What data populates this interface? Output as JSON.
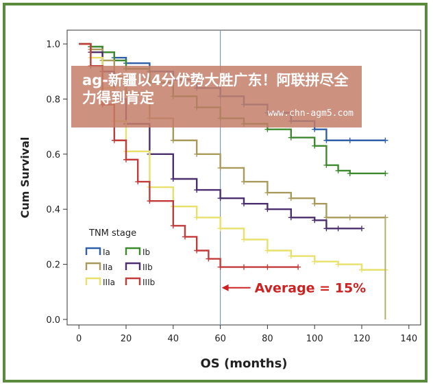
{
  "chart_data": {
    "type": "line",
    "xlabel": "OS (months)",
    "ylabel": "Cum Survival",
    "xlim": [
      -5,
      145
    ],
    "ylim": [
      -0.02,
      1.05
    ],
    "x_ticks": [
      0,
      20,
      40,
      60,
      80,
      100,
      120,
      140
    ],
    "y_ticks": [
      0.0,
      0.2,
      0.4,
      0.6,
      0.8,
      1.0
    ],
    "x_tick_labels": [
      "0",
      "20",
      "40",
      "60",
      "80",
      "100",
      "120",
      "140"
    ],
    "y_tick_labels": [
      "0.0",
      "0.2",
      "0.4",
      "0.6",
      "0.8",
      "1.0"
    ],
    "grid": false,
    "legend_title": "TNM stage",
    "legend_position": "bottom-left",
    "reference_line_x": 60,
    "annotation": {
      "text": "Average = 15%",
      "color": "#cc2222",
      "arrow_to_x": 60,
      "y": 0.115
    },
    "series": [
      {
        "name": "Ia",
        "color": "#2f5fa8",
        "points": [
          [
            0,
            1.0
          ],
          [
            5,
            0.99
          ],
          [
            10,
            0.97
          ],
          [
            15,
            0.95
          ],
          [
            20,
            0.93
          ],
          [
            30,
            0.9
          ],
          [
            40,
            0.87
          ],
          [
            50,
            0.84
          ],
          [
            60,
            0.81
          ],
          [
            70,
            0.78
          ],
          [
            80,
            0.75
          ],
          [
            90,
            0.72
          ],
          [
            100,
            0.69
          ],
          [
            105,
            0.65
          ],
          [
            115,
            0.65
          ],
          [
            130,
            0.65
          ]
        ]
      },
      {
        "name": "Ib",
        "color": "#3d8a2e",
        "points": [
          [
            0,
            1.0
          ],
          [
            5,
            0.99
          ],
          [
            10,
            0.97
          ],
          [
            15,
            0.94
          ],
          [
            20,
            0.91
          ],
          [
            30,
            0.86
          ],
          [
            40,
            0.81
          ],
          [
            50,
            0.77
          ],
          [
            60,
            0.73
          ],
          [
            70,
            0.71
          ],
          [
            80,
            0.69
          ],
          [
            90,
            0.66
          ],
          [
            100,
            0.63
          ],
          [
            105,
            0.56
          ],
          [
            110,
            0.54
          ],
          [
            115,
            0.53
          ],
          [
            130,
            0.53
          ]
        ]
      },
      {
        "name": "IIa",
        "color": "#a89a5a",
        "points": [
          [
            0,
            1.0
          ],
          [
            5,
            0.98
          ],
          [
            10,
            0.94
          ],
          [
            15,
            0.88
          ],
          [
            20,
            0.82
          ],
          [
            30,
            0.73
          ],
          [
            40,
            0.65
          ],
          [
            50,
            0.6
          ],
          [
            60,
            0.55
          ],
          [
            70,
            0.5
          ],
          [
            80,
            0.46
          ],
          [
            90,
            0.44
          ],
          [
            100,
            0.42
          ],
          [
            105,
            0.37
          ],
          [
            115,
            0.37
          ],
          [
            130,
            0.37
          ]
        ]
      },
      {
        "name": "IIb",
        "color": "#4a2e6e",
        "points": [
          [
            0,
            1.0
          ],
          [
            5,
            0.97
          ],
          [
            10,
            0.9
          ],
          [
            15,
            0.8
          ],
          [
            20,
            0.71
          ],
          [
            30,
            0.6
          ],
          [
            40,
            0.51
          ],
          [
            50,
            0.47
          ],
          [
            60,
            0.44
          ],
          [
            70,
            0.42
          ],
          [
            80,
            0.4
          ],
          [
            90,
            0.37
          ],
          [
            100,
            0.36
          ],
          [
            105,
            0.33
          ],
          [
            110,
            0.33
          ],
          [
            120,
            0.33
          ]
        ]
      },
      {
        "name": "IIIa",
        "color": "#e8e06a",
        "points": [
          [
            0,
            1.0
          ],
          [
            5,
            0.95
          ],
          [
            10,
            0.84
          ],
          [
            15,
            0.72
          ],
          [
            20,
            0.61
          ],
          [
            30,
            0.48
          ],
          [
            40,
            0.41
          ],
          [
            50,
            0.37
          ],
          [
            60,
            0.33
          ],
          [
            70,
            0.29
          ],
          [
            80,
            0.25
          ],
          [
            90,
            0.23
          ],
          [
            100,
            0.21
          ],
          [
            110,
            0.2
          ],
          [
            120,
            0.18
          ],
          [
            130,
            0.18
          ]
        ]
      },
      {
        "name": "IIIb",
        "color": "#c33a3a",
        "points": [
          [
            0,
            1.0
          ],
          [
            5,
            0.92
          ],
          [
            10,
            0.78
          ],
          [
            15,
            0.65
          ],
          [
            20,
            0.58
          ],
          [
            25,
            0.5
          ],
          [
            30,
            0.43
          ],
          [
            40,
            0.34
          ],
          [
            45,
            0.3
          ],
          [
            50,
            0.25
          ],
          [
            55,
            0.22
          ],
          [
            60,
            0.19
          ],
          [
            70,
            0.19
          ],
          [
            80,
            0.19
          ],
          [
            93,
            0.19
          ]
        ]
      }
    ]
  },
  "overlay": {
    "headline": "ag-新疆以4分优势大胜广东！阿联拼尽全力得到肯定",
    "site": "www.chn-agm5.com"
  }
}
